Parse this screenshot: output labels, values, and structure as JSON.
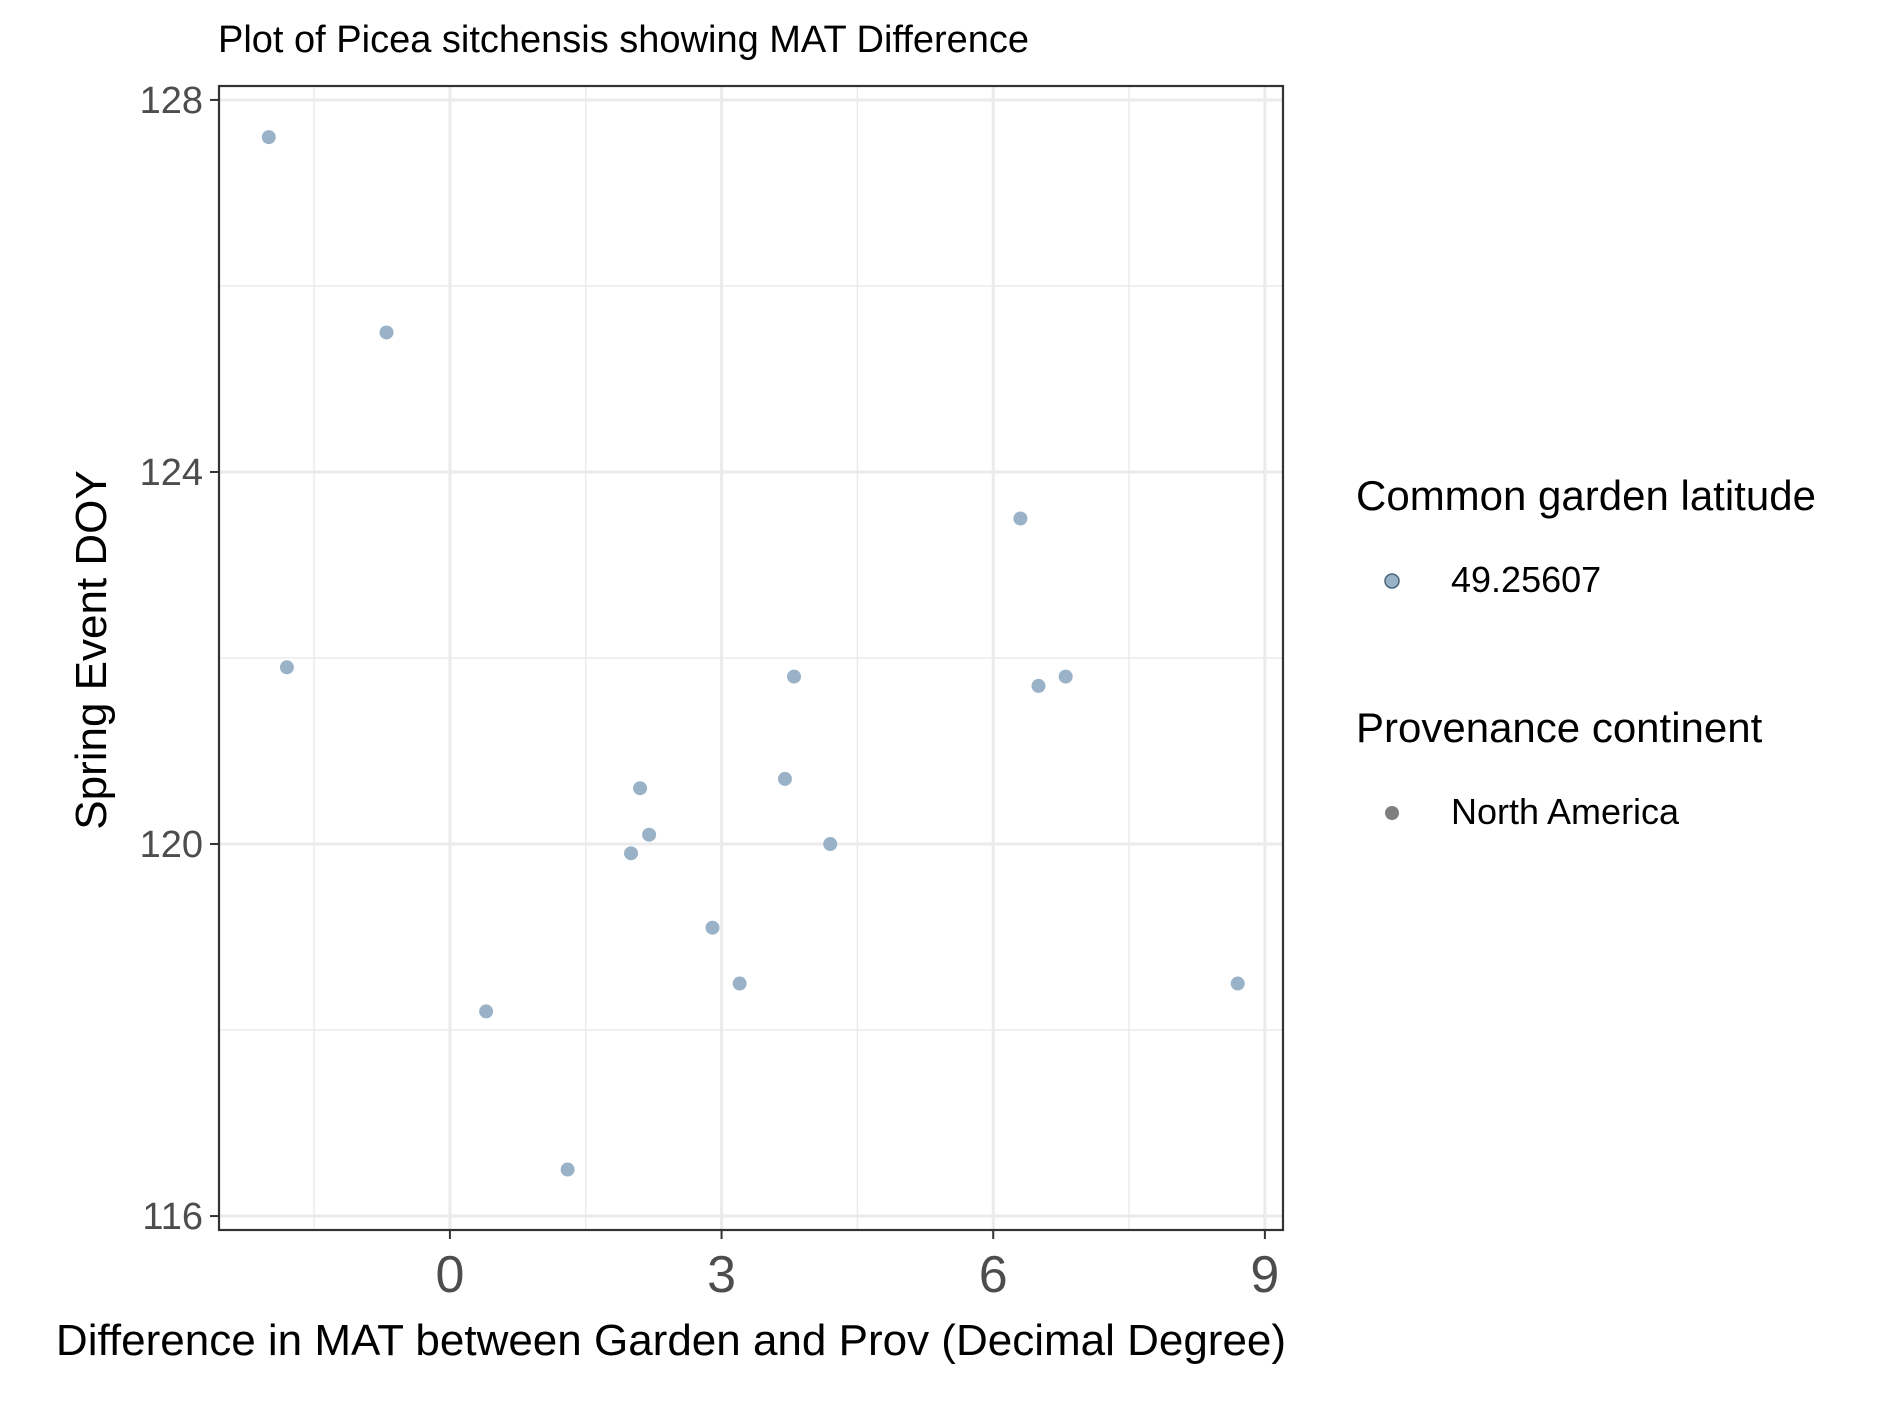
{
  "chart_data": {
    "type": "scatter",
    "title": "Plot of Picea sitchensis showing MAT Difference",
    "xlabel": "Difference in MAT between Garden and Prov (Decimal Degree)",
    "ylabel": "Spring Event DOY",
    "xlim": [
      -2.55,
      9.2
    ],
    "ylim": [
      115.85,
      128.15
    ],
    "x_ticks": [
      0,
      3,
      6,
      9
    ],
    "x_tick_labels": [
      "0",
      "3",
      "6",
      "9"
    ],
    "x_minor_ticks": [
      -1.5,
      1.5,
      4.5,
      7.5
    ],
    "y_ticks": [
      116,
      120,
      124,
      128
    ],
    "y_tick_labels": [
      "116",
      "120",
      "124",
      "128"
    ],
    "y_minor_ticks": [
      118,
      122,
      126
    ],
    "grid": true,
    "legend_position": "right",
    "point_color": "#9ab2c7",
    "legend": [
      {
        "title": "Common garden latitude",
        "entries": [
          {
            "label": "49.25607",
            "color": "#9ab2c7"
          }
        ]
      },
      {
        "title": "Provenance continent",
        "entries": [
          {
            "label": "North America",
            "color": "#7f7f7f"
          }
        ]
      }
    ],
    "series": [
      {
        "x": [
          -2.0,
          -0.7,
          -1.8,
          6.3,
          3.8,
          6.5,
          6.8,
          3.7,
          2.1,
          2.2,
          2.0,
          4.2,
          2.9,
          3.2,
          0.4,
          1.3,
          8.7
        ],
        "y": [
          127.6,
          125.5,
          121.9,
          123.5,
          121.8,
          121.7,
          121.8,
          120.7,
          120.6,
          120.1,
          119.9,
          120.0,
          119.1,
          118.5,
          118.2,
          116.5,
          118.5
        ]
      }
    ]
  }
}
